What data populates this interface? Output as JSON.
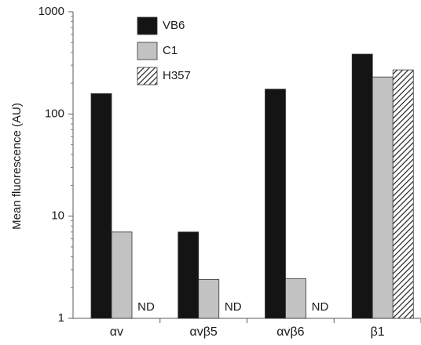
{
  "chart_data": {
    "type": "bar",
    "title": "",
    "xlabel": "",
    "ylabel": "Mean fluorescence (AU)",
    "yscale": "log",
    "ylim": [
      1,
      1000
    ],
    "yticks": [
      1,
      10,
      100,
      1000
    ],
    "ytick_labels": [
      "1",
      "10",
      "100",
      "1000"
    ],
    "categories": [
      "αv",
      "αvβ5",
      "αvβ6",
      "β1"
    ],
    "legend_position": "top-left",
    "grid": false,
    "series": [
      {
        "name": "VB6",
        "color": "#141414",
        "pattern": "solid",
        "values": [
          158,
          7,
          175,
          385
        ]
      },
      {
        "name": "C1",
        "color": "#c2c2c2",
        "pattern": "solid",
        "values": [
          7,
          2.4,
          2.45,
          230
        ]
      },
      {
        "name": "H357",
        "color": "#ffffff",
        "pattern": "diagonal-hatch",
        "values": [
          null,
          null,
          null,
          270
        ]
      }
    ],
    "annotations": [
      {
        "text": "ND",
        "category": "αv",
        "series": "H357"
      },
      {
        "text": "ND",
        "category": "αvβ5",
        "series": "H357"
      },
      {
        "text": "ND",
        "category": "αvβ6",
        "series": "H357"
      }
    ]
  }
}
